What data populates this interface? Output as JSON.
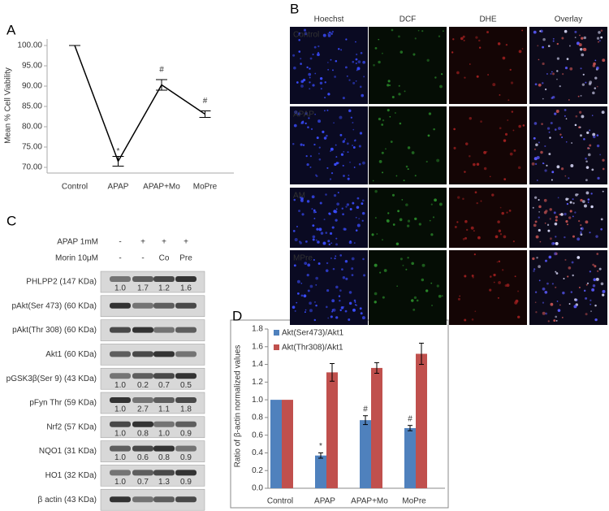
{
  "chart_data": [
    {
      "type": "line",
      "label": "A",
      "ylabel": "Mean % Cell Viability",
      "categories": [
        "Control",
        "APAP",
        "APAP+Mo",
        "MoPre"
      ],
      "values": [
        100,
        71.5,
        90.3,
        83.1
      ],
      "errors": [
        0,
        1.2,
        1.3,
        0.8
      ],
      "markers": [
        null,
        "*",
        "#",
        "#"
      ],
      "color": "#000000",
      "ylim": [
        68.6,
        101.6
      ],
      "yticks": [
        {
          "value": 70,
          "label": "70.00"
        },
        {
          "value": 75,
          "label": "75.00"
        },
        {
          "value": 80,
          "label": "80.00"
        },
        {
          "value": 85,
          "label": "85.00"
        },
        {
          "value": 90,
          "label": "90.00"
        },
        {
          "value": 95,
          "label": "95.00"
        },
        {
          "value": 100,
          "label": "100.00"
        }
      ],
      "grid": false
    },
    {
      "type": "bar",
      "label": "D",
      "ylabel": "Ratio of β-actin normalized values",
      "categories": [
        "Control",
        "APAP",
        "APAP+Mo",
        "MoPre"
      ],
      "series": [
        {
          "name": "Akt(Ser473)/Akt1",
          "color": "#4f81bd",
          "values": [
            1.0,
            0.37,
            0.77,
            0.68
          ],
          "errors": [
            0,
            0.03,
            0.05,
            0.03
          ],
          "markers": [
            null,
            "*",
            "#",
            "#"
          ]
        },
        {
          "name": "Akt(Thr308)/Akt1",
          "color": "#c0504d",
          "values": [
            1.0,
            1.31,
            1.36,
            1.52
          ],
          "errors": [
            0,
            0.1,
            0.06,
            0.12
          ]
        }
      ],
      "ylim": [
        0,
        1.8
      ],
      "yticks": [
        {
          "value": 0,
          "label": "0.0"
        },
        {
          "value": 0.2,
          "label": "0.2"
        },
        {
          "value": 0.4,
          "label": "0.4"
        },
        {
          "value": 0.6,
          "label": "0.6"
        },
        {
          "value": 0.8,
          "label": "0.8"
        },
        {
          "value": 1.0,
          "label": "1.0"
        },
        {
          "value": 1.2,
          "label": "1.2"
        },
        {
          "value": 1.4,
          "label": "1.4"
        },
        {
          "value": 1.6,
          "label": "1.6"
        },
        {
          "value": 1.8,
          "label": "1.8"
        }
      ],
      "legend": "top-left",
      "grid": false
    }
  ],
  "panel_b": {
    "label": "B",
    "columns": [
      "Hoechst",
      "DCF",
      "DHE",
      "Overlay"
    ],
    "rows": [
      "Control",
      "APAP",
      "AM",
      "MPre"
    ]
  },
  "panel_c": {
    "label": "C",
    "treatments": [
      {
        "label": "APAP 1mM",
        "lanes": [
          "-",
          "+",
          "+",
          "+"
        ]
      },
      {
        "label": "Morin 10μM",
        "lanes": [
          "-",
          "-",
          "Co",
          "Pre"
        ]
      }
    ],
    "blots": [
      {
        "label": "PHLPP2 (147 KDa)",
        "values": [
          "1.0",
          "1.7",
          "1.2",
          "1.6"
        ]
      },
      {
        "label": "pAkt(Ser 473) (60 KDa)"
      },
      {
        "label": "pAkt(Thr 308) (60 KDa)"
      },
      {
        "label": "Akt1 (60 KDa)"
      },
      {
        "label": "pGSK3β(Ser 9) (43 KDa)",
        "values": [
          "1.0",
          "0.2",
          "0.7",
          "0.5"
        ]
      },
      {
        "label": "pFyn Thr (59 KDa)",
        "values": [
          "1.0",
          "2.7",
          "1.1",
          "1.8"
        ]
      },
      {
        "label": "Nrf2 (57 KDa)",
        "values": [
          "1.0",
          "0.8",
          "1.0",
          "0.9"
        ]
      },
      {
        "label": "NQO1 (31 KDa)",
        "values": [
          "1.0",
          "0.6",
          "0.8",
          "0.9"
        ]
      },
      {
        "label": "HO1 (32 KDa)",
        "values": [
          "1.0",
          "0.7",
          "1.3",
          "0.9"
        ]
      },
      {
        "label": "β actin (43 KDa)"
      }
    ]
  }
}
